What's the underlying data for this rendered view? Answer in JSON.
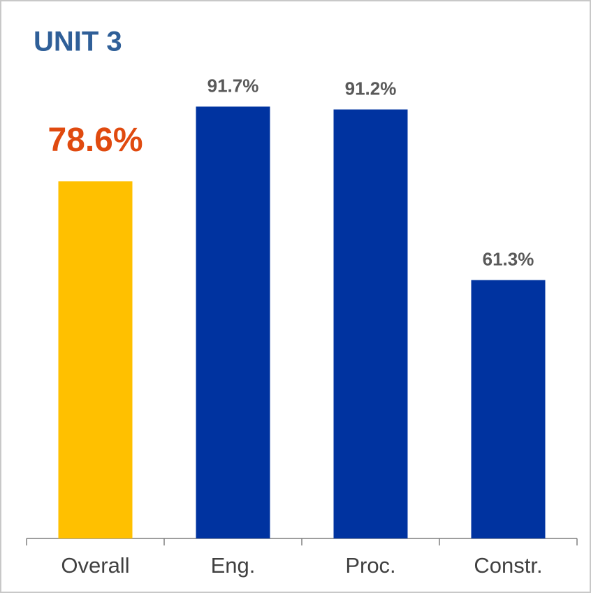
{
  "chart_data": {
    "type": "bar",
    "title": "UNIT 3",
    "categories": [
      "Overall",
      "Eng.",
      "Proc.",
      "Constr."
    ],
    "values": [
      78.6,
      91.7,
      91.2,
      61.3
    ],
    "value_labels": [
      "78.6%",
      "91.7%",
      "91.2%",
      "61.3%"
    ],
    "colors": [
      "#FFC000",
      "#0033A0",
      "#0033A0",
      "#0033A0"
    ],
    "ylim": [
      16,
      92
    ]
  }
}
